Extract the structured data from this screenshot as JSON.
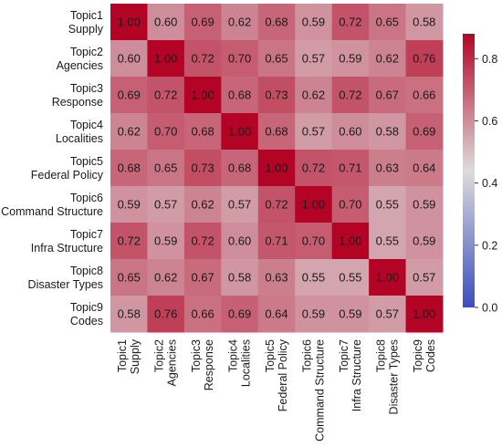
{
  "chart_data": {
    "type": "heatmap",
    "title": "",
    "xlabel": "",
    "ylabel": "",
    "labels": [
      [
        "Topic1",
        "Supply"
      ],
      [
        "Topic2",
        "Agencies"
      ],
      [
        "Topic3",
        "Response"
      ],
      [
        "Topic4",
        "Localities"
      ],
      [
        "Topic5",
        "Federal Policy"
      ],
      [
        "Topic6",
        "Command Structure"
      ],
      [
        "Topic7",
        "Infra Structure"
      ],
      [
        "Topic8",
        "Disaster Types"
      ],
      [
        "Topic9",
        "Codes"
      ]
    ],
    "matrix": [
      [
        1.0,
        0.6,
        0.69,
        0.62,
        0.68,
        0.59,
        0.72,
        0.65,
        0.58
      ],
      [
        0.6,
        1.0,
        0.72,
        0.7,
        0.65,
        0.57,
        0.59,
        0.62,
        0.76
      ],
      [
        0.69,
        0.72,
        1.0,
        0.68,
        0.73,
        0.62,
        0.72,
        0.67,
        0.66
      ],
      [
        0.62,
        0.7,
        0.68,
        1.0,
        0.68,
        0.57,
        0.6,
        0.58,
        0.69
      ],
      [
        0.68,
        0.65,
        0.73,
        0.68,
        1.0,
        0.72,
        0.71,
        0.63,
        0.64
      ],
      [
        0.59,
        0.57,
        0.62,
        0.57,
        0.72,
        1.0,
        0.7,
        0.55,
        0.59
      ],
      [
        0.72,
        0.59,
        0.72,
        0.6,
        0.71,
        0.7,
        1.0,
        0.55,
        0.59
      ],
      [
        0.65,
        0.62,
        0.67,
        0.58,
        0.63,
        0.55,
        0.55,
        1.0,
        0.57
      ],
      [
        0.58,
        0.76,
        0.66,
        0.69,
        0.64,
        0.59,
        0.59,
        0.57,
        1.0
      ]
    ],
    "value_format": "0.00",
    "colormap": "coolwarm",
    "color_low": "#3b4cc0",
    "color_mid": "#dddcdc",
    "color_high": "#b40426",
    "colorbar": {
      "range": [
        0.0,
        0.88
      ],
      "ticks": [
        0.0,
        0.2,
        0.4,
        0.6,
        0.8
      ],
      "tick_labels": [
        "0.0",
        "0.2",
        "0.4",
        "0.6",
        "0.8"
      ]
    }
  }
}
